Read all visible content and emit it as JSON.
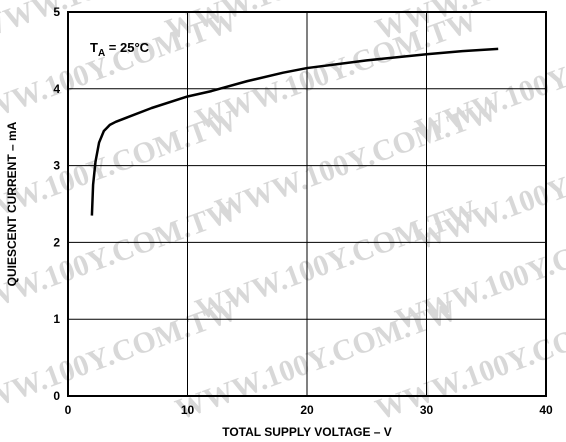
{
  "chart_data": {
    "type": "line",
    "watermark": "WWW.100Y.COM.TW",
    "annotation": {
      "main": "T",
      "subscript": "A",
      "rest": " = 25°C"
    },
    "xlabel": "TOTAL SUPPLY VOLTAGE – V",
    "ylabel": "QUIESCENT CURRENT – mA",
    "xlim": [
      0,
      40
    ],
    "xticks": [
      0,
      10,
      20,
      30,
      40
    ],
    "ylim": [
      0,
      5
    ],
    "yticks": [
      0,
      1,
      2,
      3,
      4,
      5
    ],
    "grid": true,
    "series": [
      {
        "color": "#000000",
        "x": [
          2,
          2.1,
          2.3,
          2.6,
          3,
          3.5,
          4,
          5,
          7,
          10,
          12,
          15,
          18,
          20,
          25,
          30,
          33,
          36
        ],
        "values": [
          2.35,
          2.75,
          3.05,
          3.3,
          3.45,
          3.53,
          3.57,
          3.63,
          3.75,
          3.9,
          3.97,
          4.1,
          4.21,
          4.27,
          4.37,
          4.45,
          4.49,
          4.52
        ]
      }
    ]
  }
}
